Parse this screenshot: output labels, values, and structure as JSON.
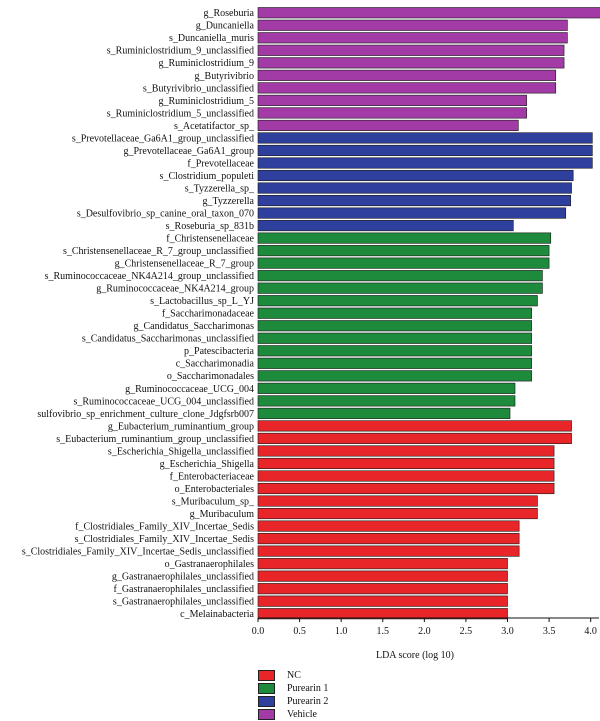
{
  "chart_data": {
    "type": "bar",
    "orientation": "horizontal",
    "xlabel": "LDA score (log 10)",
    "xlim": [
      0,
      4.1
    ],
    "xticks": [
      "0.0",
      "0.5",
      "1.0",
      "1.5",
      "2.0",
      "2.5",
      "3.0",
      "3.5",
      "4.0"
    ],
    "groups": [
      {
        "name": "NC",
        "color": "#e8262a"
      },
      {
        "name": "Purearin 1",
        "color": "#1e8a3c"
      },
      {
        "name": "Purearin 2",
        "color": "#2f3f9e"
      },
      {
        "name": "Vehicle",
        "color": "#a23ba6"
      }
    ],
    "bars": [
      {
        "label": "g_Roseburia",
        "value": 4.13,
        "group": "Vehicle"
      },
      {
        "label": "g_Duncaniella",
        "value": 3.72,
        "group": "Vehicle"
      },
      {
        "label": "s_Duncaniella_muris",
        "value": 3.72,
        "group": "Vehicle"
      },
      {
        "label": "s_Ruminiclostridium_9_unclassified",
        "value": 3.68,
        "group": "Vehicle"
      },
      {
        "label": "g_Ruminiclostridium_9",
        "value": 3.68,
        "group": "Vehicle"
      },
      {
        "label": "g_Butyrivibrio",
        "value": 3.58,
        "group": "Vehicle"
      },
      {
        "label": "s_Butyrivibrio_unclassified",
        "value": 3.58,
        "group": "Vehicle"
      },
      {
        "label": "g_Ruminiclostridium_5",
        "value": 3.23,
        "group": "Vehicle"
      },
      {
        "label": "s_Ruminiclostridium_5_unclassified",
        "value": 3.23,
        "group": "Vehicle"
      },
      {
        "label": "s_Acetatifactor_sp_",
        "value": 3.13,
        "group": "Vehicle"
      },
      {
        "label": "s_Prevotellaceae_Ga6A1_group_unclassified",
        "value": 4.02,
        "group": "Purearin 2"
      },
      {
        "label": "g_Prevotellaceae_Ga6A1_group",
        "value": 4.02,
        "group": "Purearin 2"
      },
      {
        "label": "f_Prevotellaceae",
        "value": 4.02,
        "group": "Purearin 2"
      },
      {
        "label": "s_Clostridium_populeti",
        "value": 3.79,
        "group": "Purearin 2"
      },
      {
        "label": "s_Tyzzerella_sp_",
        "value": 3.77,
        "group": "Purearin 2"
      },
      {
        "label": "g_Tyzzerella",
        "value": 3.76,
        "group": "Purearin 2"
      },
      {
        "label": "s_Desulfovibrio_sp_canine_oral_taxon_070",
        "value": 3.7,
        "group": "Purearin 2"
      },
      {
        "label": "s_Roseburia_sp_831b",
        "value": 3.07,
        "group": "Purearin 2"
      },
      {
        "label": "f_Christensenellaceae",
        "value": 3.52,
        "group": "Purearin 1"
      },
      {
        "label": "s_Christensenellaceae_R_7_group_unclassified",
        "value": 3.5,
        "group": "Purearin 1"
      },
      {
        "label": "g_Christensenellaceae_R_7_group",
        "value": 3.5,
        "group": "Purearin 1"
      },
      {
        "label": "s_Ruminococcaceae_NK4A214_group_unclassified",
        "value": 3.42,
        "group": "Purearin 1"
      },
      {
        "label": "g_Ruminococcaceae_NK4A214_group",
        "value": 3.42,
        "group": "Purearin 1"
      },
      {
        "label": "s_Lactobacillus_sp_L_YJ",
        "value": 3.36,
        "group": "Purearin 1"
      },
      {
        "label": "f_Saccharimonadaceae",
        "value": 3.29,
        "group": "Purearin 1"
      },
      {
        "label": "g_Candidatus_Saccharimonas",
        "value": 3.29,
        "group": "Purearin 1"
      },
      {
        "label": "s_Candidatus_Saccharimonas_unclassified",
        "value": 3.29,
        "group": "Purearin 1"
      },
      {
        "label": "p_Patescibacteria",
        "value": 3.29,
        "group": "Purearin 1"
      },
      {
        "label": "c_Saccharimonadia",
        "value": 3.29,
        "group": "Purearin 1"
      },
      {
        "label": "o_Saccharimonadales",
        "value": 3.29,
        "group": "Purearin 1"
      },
      {
        "label": "g_Ruminococcaceae_UCG_004",
        "value": 3.09,
        "group": "Purearin 1"
      },
      {
        "label": "s_Ruminococcaceae_UCG_004_unclassified",
        "value": 3.09,
        "group": "Purearin 1"
      },
      {
        "label": "sulfovibrio_sp_enrichment_culture_clone_Jdgfsrb007",
        "value": 3.03,
        "group": "Purearin 1"
      },
      {
        "label": "g_Eubacterium_ruminantium_group",
        "value": 3.77,
        "group": "NC"
      },
      {
        "label": "s_Eubacterium_ruminantium_group_unclassified",
        "value": 3.77,
        "group": "NC"
      },
      {
        "label": "s_Escherichia_Shigella_unclassified",
        "value": 3.56,
        "group": "NC"
      },
      {
        "label": "g_Escherichia_Shigella",
        "value": 3.56,
        "group": "NC"
      },
      {
        "label": "f_Enterobacteriaceae",
        "value": 3.56,
        "group": "NC"
      },
      {
        "label": "o_Enterobacteriales",
        "value": 3.56,
        "group": "NC"
      },
      {
        "label": "s_Muribaculum_sp_",
        "value": 3.36,
        "group": "NC"
      },
      {
        "label": "g_Muribaculum",
        "value": 3.36,
        "group": "NC"
      },
      {
        "label": "f_Clostridiales_Family_XIV_Incertae_Sedis",
        "value": 3.14,
        "group": "NC"
      },
      {
        "label": "s_Clostridiales_Family_XIV_Incertae_Sedis",
        "value": 3.14,
        "group": "NC"
      },
      {
        "label": "s_Clostridiales_Family_XIV_Incertae_Sedis_unclassified",
        "value": 3.14,
        "group": "NC"
      },
      {
        "label": "o_Gastranaerophilales",
        "value": 3.0,
        "group": "NC"
      },
      {
        "label": "g_Gastranaerophilales_unclassified",
        "value": 3.0,
        "group": "NC"
      },
      {
        "label": "f_Gastranaerophilales_unclassified",
        "value": 3.0,
        "group": "NC"
      },
      {
        "label": "s_Gastranaerophilales_unclassified",
        "value": 3.0,
        "group": "NC"
      },
      {
        "label": "c_Melainabacteria",
        "value": 3.0,
        "group": "NC"
      }
    ]
  }
}
